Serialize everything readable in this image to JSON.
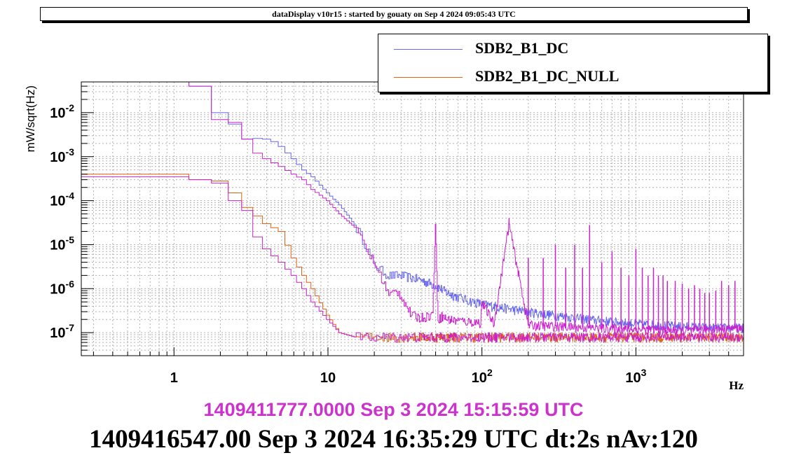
{
  "header": {
    "title": "dataDisplay v10r15 : started by gouaty on Sep  4 2024 09:05:43 UTC"
  },
  "legend": {
    "items": [
      {
        "label": "SDB2_B1_DC",
        "color": "#6666ee"
      },
      {
        "label": "SDB2_B1_DC_NULL",
        "color": "#e06010"
      }
    ]
  },
  "footer": {
    "reference_time": "1409411777.0000 Sep 3 2024 15:15:59 UTC",
    "current_time": "1409416547.00 Sep 3 2024 16:35:29 UTC dt:2s nAv:120"
  },
  "colors": {
    "reference": "#cc22cc",
    "reference_text": "#cc33cc",
    "frame": "#000000",
    "grid": "#b0b0b0"
  },
  "chart_data": {
    "type": "line",
    "title": "",
    "xlabel": "Hz",
    "ylabel": "mW/sqrt(Hz)",
    "x_scale": "log",
    "y_scale": "log",
    "xlim": [
      0.25,
      5000
    ],
    "ylim": [
      3e-08,
      0.05
    ],
    "grid": true,
    "legend_position": "top-right",
    "x_ticks": [
      {
        "value": 1,
        "label": "1"
      },
      {
        "value": 10,
        "label": "10"
      },
      {
        "value": 100,
        "label": "10^2"
      },
      {
        "value": 1000,
        "label": "10^3"
      }
    ],
    "y_ticks": [
      {
        "value": 1e-07,
        "label": "10^-7"
      },
      {
        "value": 1e-06,
        "label": "10^-6"
      },
      {
        "value": 1e-05,
        "label": "10^-5"
      },
      {
        "value": 0.0001,
        "label": "10^-4"
      },
      {
        "value": 0.001,
        "label": "10^-3"
      },
      {
        "value": 0.01,
        "label": "10^-2"
      }
    ],
    "series": [
      {
        "name": "SDB2_B1_DC",
        "color": "#6666ee",
        "x": [
          0.25,
          0.5,
          1,
          1.25,
          1.6,
          2.0,
          2.4,
          3,
          3.5,
          4,
          4.5,
          5,
          6,
          7,
          8,
          10,
          12,
          14,
          16,
          18,
          20,
          25,
          30,
          40,
          50,
          60,
          80,
          100,
          150,
          200,
          300,
          500,
          1000,
          2000,
          3000,
          5000
        ],
        "y": [
          0.05,
          0.05,
          0.05,
          0.04,
          0.014,
          0.01,
          0.0055,
          0.0025,
          0.0026,
          0.0025,
          0.0022,
          0.0017,
          0.0009,
          0.0005,
          0.00035,
          0.00015,
          8e-05,
          4e-05,
          2e-05,
          9e-06,
          3.5e-06,
          2e-06,
          2e-06,
          1.6e-06,
          1.2e-06,
          8e-07,
          5.5e-07,
          4.5e-07,
          3.5e-07,
          3e-07,
          2.5e-07,
          2e-07,
          1.6e-07,
          1.4e-07,
          1.3e-07,
          1.3e-07
        ]
      },
      {
        "name": "SDB2_B1_DC_NULL",
        "color": "#e06010",
        "x": [
          0.25,
          1,
          1.5,
          2,
          2.4,
          2.8,
          3.5,
          4,
          5,
          6,
          7,
          8,
          10,
          12,
          15,
          20,
          50,
          100,
          500,
          1000,
          5000
        ],
        "y": [
          0.0004,
          0.0004,
          0.0003,
          0.00028,
          0.00015,
          7e-05,
          4.5e-05,
          3e-05,
          2e-05,
          5e-06,
          2e-06,
          1e-06,
          2.5e-07,
          1e-07,
          8e-08,
          8e-08,
          8e-08,
          8e-08,
          8e-08,
          8e-08,
          8e-08
        ]
      },
      {
        "name": "",
        "color": "#cc22cc",
        "x": [
          0.25,
          0.5,
          1,
          1.25,
          1.6,
          2.0,
          2.4,
          2.8,
          3.2,
          3.5,
          4,
          5,
          6,
          7,
          8,
          10,
          12,
          15,
          18,
          20,
          23,
          25,
          28,
          30,
          35,
          40,
          48,
          50,
          52,
          55,
          60,
          80,
          98,
          100,
          120,
          150,
          200,
          300,
          500,
          1000,
          2000,
          3000,
          5000
        ],
        "y": [
          0.05,
          0.05,
          0.05,
          0.04,
          0.011,
          0.007,
          0.006,
          0.0025,
          0.0017,
          0.0012,
          0.0009,
          0.0006,
          0.0004,
          0.0003,
          0.00018,
          0.0001,
          5e-05,
          2.5e-05,
          8e-06,
          4e-06,
          1.5e-06,
          7e-07,
          9e-07,
          7e-07,
          2.5e-07,
          2.2e-07,
          2.6e-07,
          3e-05,
          2e-07,
          2.4e-07,
          2e-07,
          1.8e-07,
          1.7e-07,
          5e-07,
          1.6e-07,
          3e-05,
          1.5e-07,
          1.4e-07,
          1.3e-07,
          1.2e-07,
          1.1e-07,
          1.2e-07,
          1.3e-07
        ]
      },
      {
        "name": "",
        "color": "#cc22cc",
        "x": [
          0.25,
          1,
          1.5,
          2,
          2.4,
          2.8,
          3.2,
          3.5,
          4,
          5,
          6,
          7,
          8,
          10,
          12,
          15,
          20,
          50,
          100,
          500,
          1000,
          5000
        ],
        "y": [
          0.00035,
          0.00035,
          0.0003,
          0.00025,
          0.0001,
          6e-05,
          3e-05,
          1.5e-05,
          8e-06,
          4e-06,
          2e-06,
          1e-06,
          5e-07,
          2e-07,
          1e-07,
          8e-08,
          8e-08,
          8e-08,
          8e-08,
          8e-08,
          8e-08,
          8e-08
        ]
      }
    ],
    "peaks": {
      "color": "#cc22cc",
      "x": [
        150,
        200,
        250,
        300,
        350,
        400,
        450,
        500,
        600,
        700,
        800,
        900,
        1000,
        1100,
        1200,
        1300,
        1400,
        1500,
        1600,
        1800,
        2000,
        2200,
        2400,
        2600,
        2800,
        3000,
        3300,
        3600,
        4000,
        4400
      ],
      "y": [
        4e-05,
        5e-06,
        5e-06,
        1e-05,
        3e-06,
        1e-05,
        3e-06,
        2.8e-05,
        4e-06,
        7e-06,
        3e-06,
        2e-06,
        8e-06,
        3e-06,
        2e-06,
        3e-06,
        2e-06,
        2e-06,
        1.5e-06,
        1.5e-06,
        1.3e-06,
        1e-06,
        1.2e-06,
        1e-06,
        8e-07,
        8e-07,
        9e-07,
        1.5e-06,
        1.2e-06,
        1.5e-06
      ]
    }
  }
}
